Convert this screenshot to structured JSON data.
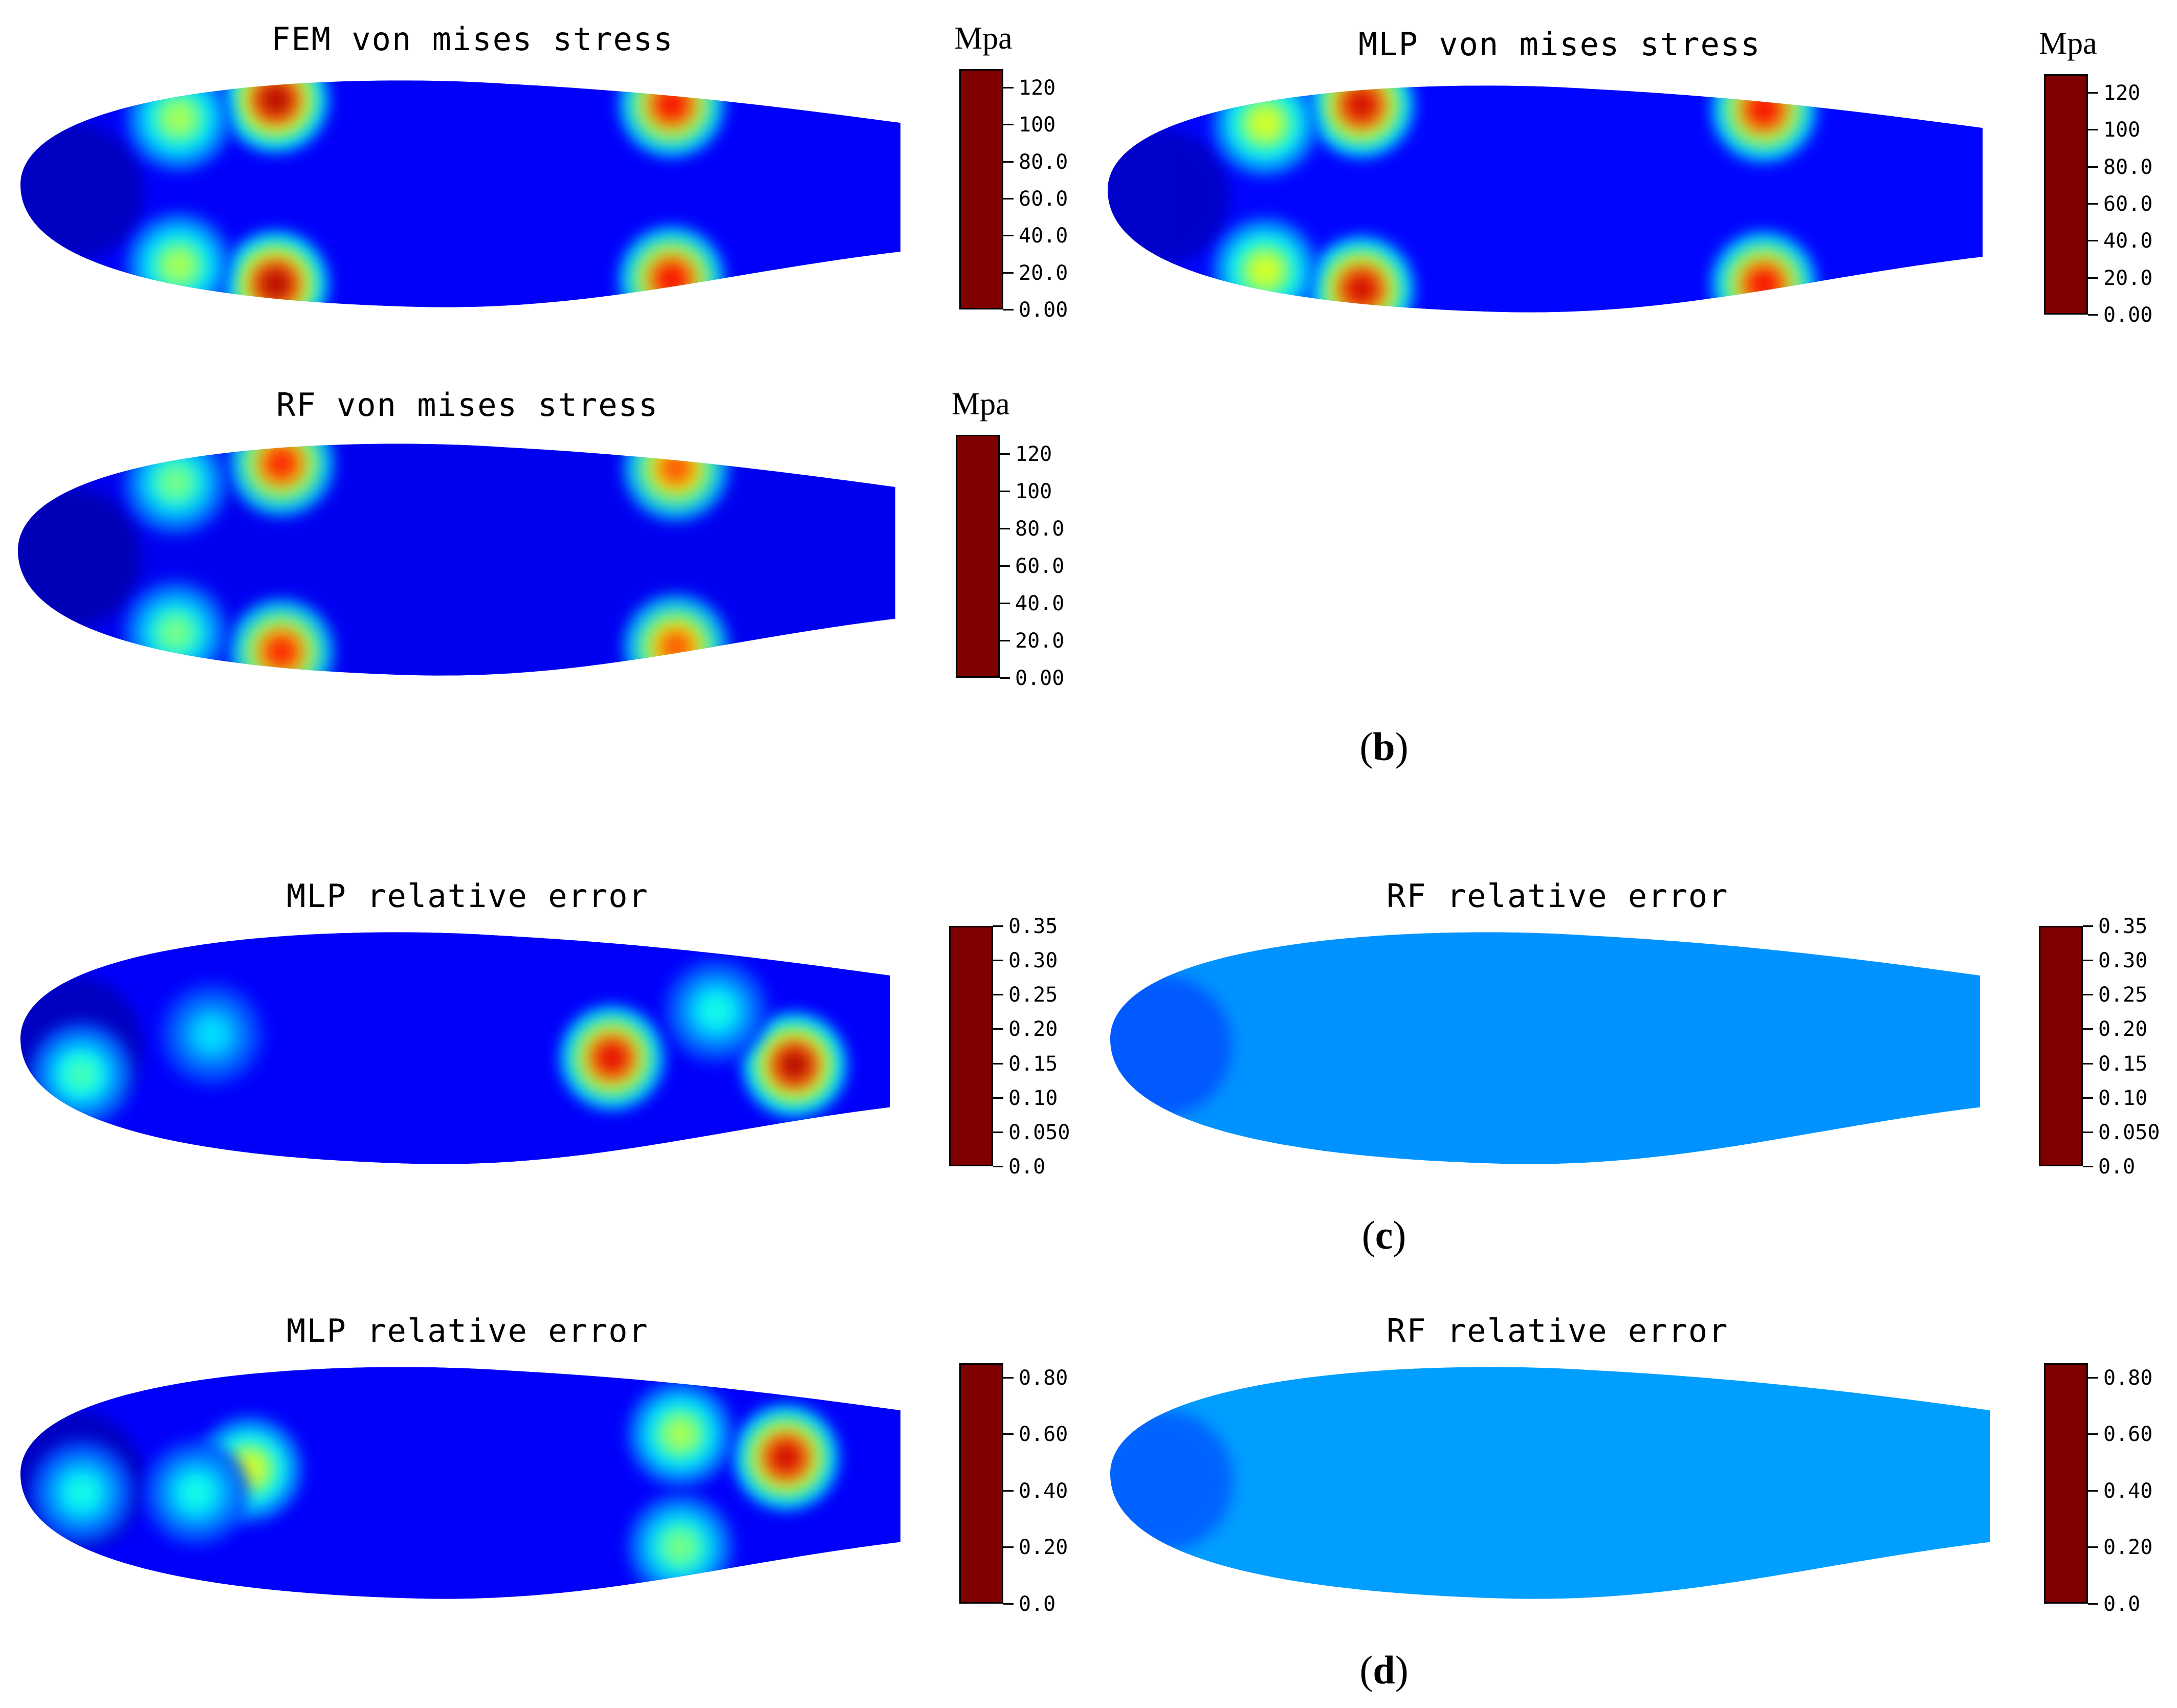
{
  "chart_data": [
    {
      "type": "heatmap",
      "panel": "b",
      "title": "FEM von mises stress",
      "colorbar_unit": "Mpa",
      "colorbar_ticks": [
        "0.00",
        "20.0",
        "40.0",
        "60.0",
        "80.0",
        "100",
        "120"
      ],
      "range": [
        0,
        130
      ],
      "background_level": 0.12,
      "hotspots": [
        {
          "x": 0.29,
          "y": 0.1,
          "level": 0.95
        },
        {
          "x": 0.29,
          "y": 0.9,
          "level": 0.95
        },
        {
          "x": 0.74,
          "y": 0.12,
          "level": 0.88
        },
        {
          "x": 0.74,
          "y": 0.88,
          "level": 0.88
        },
        {
          "x": 0.18,
          "y": 0.18,
          "level": 0.55
        },
        {
          "x": 0.18,
          "y": 0.82,
          "level": 0.55
        }
      ]
    },
    {
      "type": "heatmap",
      "panel": "b",
      "title": "MLP von mises stress",
      "colorbar_unit": "Mpa",
      "colorbar_ticks": [
        "0.00",
        "20.0",
        "40.0",
        "60.0",
        "80.0",
        "100",
        "120"
      ],
      "range": [
        0,
        130
      ],
      "background_level": 0.13,
      "hotspots": [
        {
          "x": 0.29,
          "y": 0.1,
          "level": 0.92
        },
        {
          "x": 0.29,
          "y": 0.9,
          "level": 0.92
        },
        {
          "x": 0.75,
          "y": 0.12,
          "level": 0.88
        },
        {
          "x": 0.75,
          "y": 0.88,
          "level": 0.88
        },
        {
          "x": 0.18,
          "y": 0.18,
          "level": 0.6
        },
        {
          "x": 0.18,
          "y": 0.82,
          "level": 0.6
        }
      ]
    },
    {
      "type": "heatmap",
      "panel": "b",
      "title": "RF von mises stress",
      "colorbar_unit": "Mpa",
      "colorbar_ticks": [
        "0.00",
        "20.0",
        "40.0",
        "60.0",
        "80.0",
        "100",
        "120"
      ],
      "range": [
        0,
        130
      ],
      "background_level": 0.11,
      "hotspots": [
        {
          "x": 0.3,
          "y": 0.1,
          "level": 0.85
        },
        {
          "x": 0.3,
          "y": 0.9,
          "level": 0.85
        },
        {
          "x": 0.75,
          "y": 0.12,
          "level": 0.8
        },
        {
          "x": 0.75,
          "y": 0.88,
          "level": 0.8
        },
        {
          "x": 0.18,
          "y": 0.18,
          "level": 0.5
        },
        {
          "x": 0.18,
          "y": 0.82,
          "level": 0.5
        }
      ]
    },
    {
      "type": "heatmap",
      "panel": "c",
      "title": "MLP relative error",
      "colorbar_ticks": [
        "0.0",
        "0.050",
        "0.10",
        "0.15",
        "0.20",
        "0.25",
        "0.30",
        "0.35"
      ],
      "range": [
        0,
        0.35
      ],
      "background_level": 0.12,
      "hotspots": [
        {
          "x": 0.68,
          "y": 0.55,
          "level": 0.9
        },
        {
          "x": 0.89,
          "y": 0.58,
          "level": 0.95
        },
        {
          "x": 0.07,
          "y": 0.62,
          "level": 0.45
        },
        {
          "x": 0.22,
          "y": 0.45,
          "level": 0.35
        },
        {
          "x": 0.8,
          "y": 0.35,
          "level": 0.4
        }
      ]
    },
    {
      "type": "heatmap",
      "panel": "c",
      "title": "RF relative error",
      "colorbar_ticks": [
        "0.0",
        "0.050",
        "0.10",
        "0.15",
        "0.20",
        "0.25",
        "0.30",
        "0.35"
      ],
      "range": [
        0,
        0.35
      ],
      "background_level": 0.27,
      "hotspots": []
    },
    {
      "type": "heatmap",
      "panel": "d",
      "title": "MLP relative error",
      "colorbar_ticks": [
        "0.0",
        "0.20",
        "0.40",
        "0.60",
        "0.80"
      ],
      "range": [
        0,
        0.85
      ],
      "background_level": 0.12,
      "hotspots": [
        {
          "x": 0.87,
          "y": 0.4,
          "level": 0.92
        },
        {
          "x": 0.26,
          "y": 0.45,
          "level": 0.6
        },
        {
          "x": 0.75,
          "y": 0.3,
          "level": 0.55
        },
        {
          "x": 0.75,
          "y": 0.78,
          "level": 0.5
        },
        {
          "x": 0.07,
          "y": 0.55,
          "level": 0.4
        },
        {
          "x": 0.2,
          "y": 0.55,
          "level": 0.4
        }
      ]
    },
    {
      "type": "heatmap",
      "panel": "d",
      "title": "RF relative error",
      "colorbar_ticks": [
        "0.0",
        "0.20",
        "0.40",
        "0.60",
        "0.80"
      ],
      "range": [
        0,
        0.85
      ],
      "background_level": 0.28,
      "hotspots": []
    }
  ],
  "captions": {
    "b": "b",
    "c": "c",
    "d": "d"
  },
  "jet_colors": [
    "#00007f",
    "#0000ff",
    "#007fff",
    "#00ffff",
    "#7fff7f",
    "#ffff00",
    "#ff7f00",
    "#ff0000",
    "#7f0000"
  ]
}
